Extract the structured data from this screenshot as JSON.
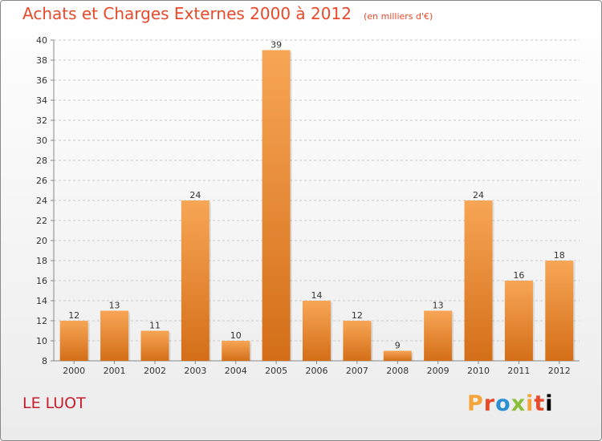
{
  "header": {
    "title": "Achats et Charges Externes 2000 à 2012",
    "subtitle": "(en milliers d'€)"
  },
  "footer": {
    "commune": "LE LUOT",
    "logo_text": "Proxiti"
  },
  "colors": {
    "bar_light": "#f7a656",
    "bar_dark": "#d46e18",
    "title": "#e8492b",
    "commune": "#c61c2c"
  },
  "chart_data": {
    "type": "bar",
    "title": "Achats et Charges Externes 2000 à 2012",
    "subtitle": "(en milliers d'€)",
    "categories": [
      "2000",
      "2001",
      "2002",
      "2003",
      "2004",
      "2005",
      "2006",
      "2007",
      "2008",
      "2009",
      "2010",
      "2011",
      "2012"
    ],
    "values": [
      12,
      13,
      11,
      24,
      10,
      39,
      14,
      12,
      9,
      13,
      24,
      16,
      18
    ],
    "ylim": [
      8,
      40
    ],
    "yticks": [
      8,
      10,
      12,
      14,
      16,
      18,
      20,
      22,
      24,
      26,
      28,
      30,
      32,
      34,
      36,
      38,
      40
    ],
    "xlabel": "",
    "ylabel": "",
    "grid": "horizontal-dashed",
    "data_labels": true,
    "legend": "none"
  }
}
